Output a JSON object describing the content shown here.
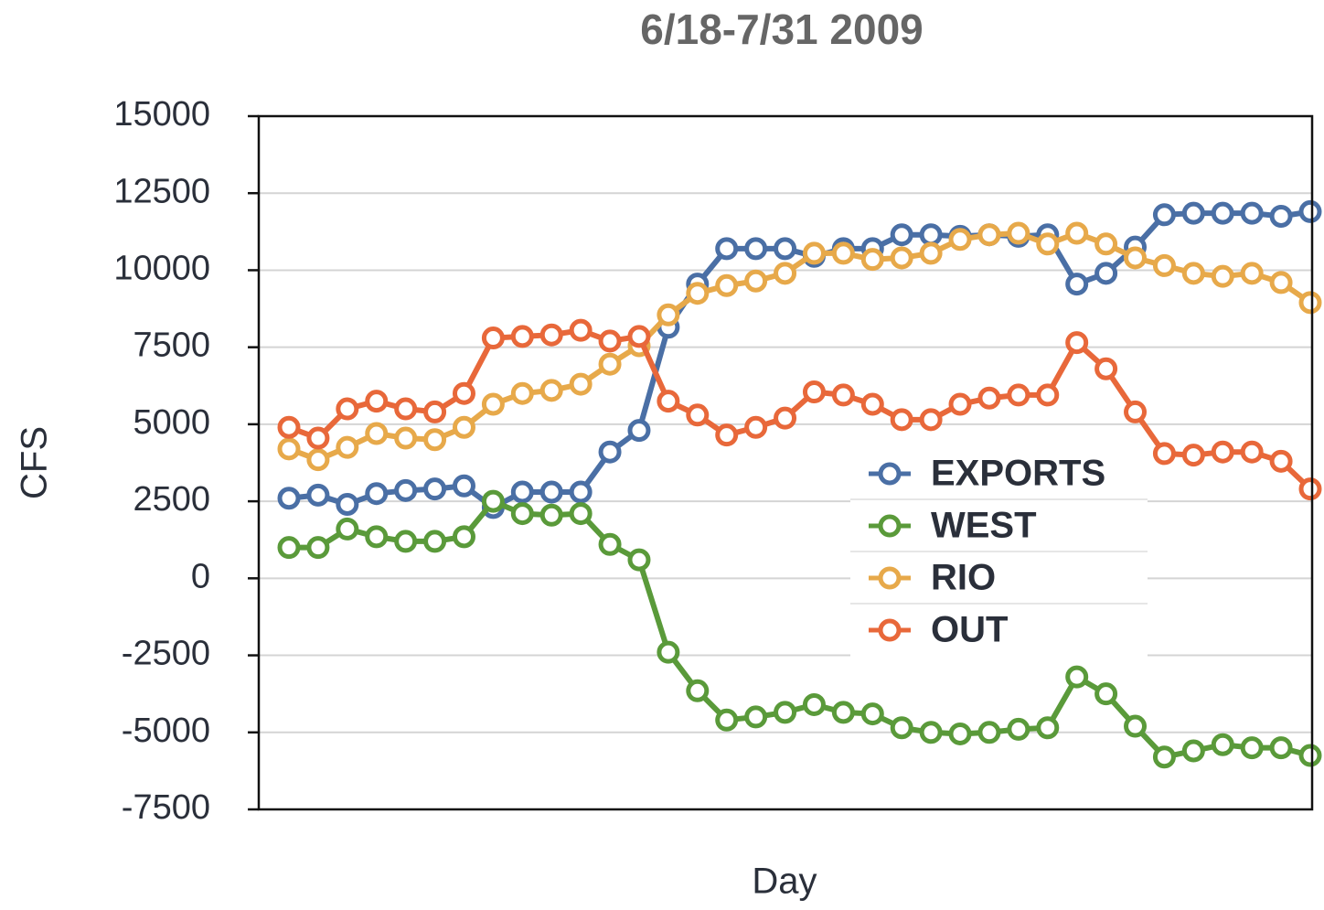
{
  "chart_data": {
    "type": "line",
    "title": "6/18-7/31 2009",
    "x_label": "Day",
    "y_label": "CFS",
    "categories": [
      null,
      null,
      null,
      null,
      null,
      null,
      null,
      null,
      null,
      null,
      null,
      null,
      null,
      null,
      null,
      null,
      null,
      null,
      null,
      null,
      null,
      null,
      null,
      null,
      null,
      null,
      null,
      null,
      null,
      null,
      null,
      null,
      null,
      null,
      null,
      null
    ],
    "series": [
      {
        "name": "EXPORTS",
        "color": "#4a6fa5",
        "values": [
          2600,
          2700,
          2400,
          2750,
          2850,
          2900,
          3000,
          2300,
          2800,
          2800,
          2800,
          4100,
          4800,
          8150,
          9550,
          10700,
          10700,
          10700,
          10450,
          10700,
          10700,
          11150,
          11150,
          11100,
          11150,
          11100,
          11150,
          9550,
          9900,
          10750,
          11800,
          11850,
          11850,
          11850,
          11750,
          11900
        ]
      },
      {
        "name": "WEST",
        "color": "#5a9a3a",
        "values": [
          1000,
          1000,
          1600,
          1350,
          1200,
          1200,
          1350,
          2500,
          2100,
          2050,
          2100,
          1100,
          600,
          -2400,
          -3650,
          -4600,
          -4500,
          -4350,
          -4100,
          -4350,
          -4400,
          -4850,
          -5000,
          -5050,
          -5000,
          -4900,
          -4850,
          -3200,
          -3750,
          -4800,
          -5800,
          -5600,
          -5400,
          -5500,
          -5500,
          -5750
        ]
      },
      {
        "name": "RIO",
        "color": "#e7a94a",
        "values": [
          4200,
          3850,
          4250,
          4700,
          4550,
          4500,
          4900,
          5650,
          6000,
          6100,
          6300,
          6950,
          7550,
          8550,
          9250,
          9500,
          9650,
          9900,
          10550,
          10550,
          10350,
          10400,
          10550,
          11000,
          11150,
          11200,
          10850,
          11200,
          10850,
          10400,
          10150,
          9900,
          9800,
          9900,
          9600,
          8950
        ]
      },
      {
        "name": "OUT",
        "color": "#e8683a",
        "values": [
          4900,
          4550,
          5500,
          5750,
          5500,
          5400,
          6000,
          7800,
          7850,
          7900,
          8050,
          7700,
          7850,
          5750,
          5300,
          4650,
          4900,
          5200,
          6050,
          5950,
          5650,
          5150,
          5150,
          5650,
          5850,
          5950,
          5950,
          7650,
          6800,
          5400,
          4050,
          4000,
          4100,
          4100,
          3800,
          2900
        ]
      }
    ],
    "ylim": [
      -7500,
      15000
    ],
    "yticks": [
      -7500,
      -5000,
      -2500,
      0,
      2500,
      5000,
      7500,
      10000,
      12500,
      15000
    ],
    "grid": true,
    "legend": "right"
  }
}
